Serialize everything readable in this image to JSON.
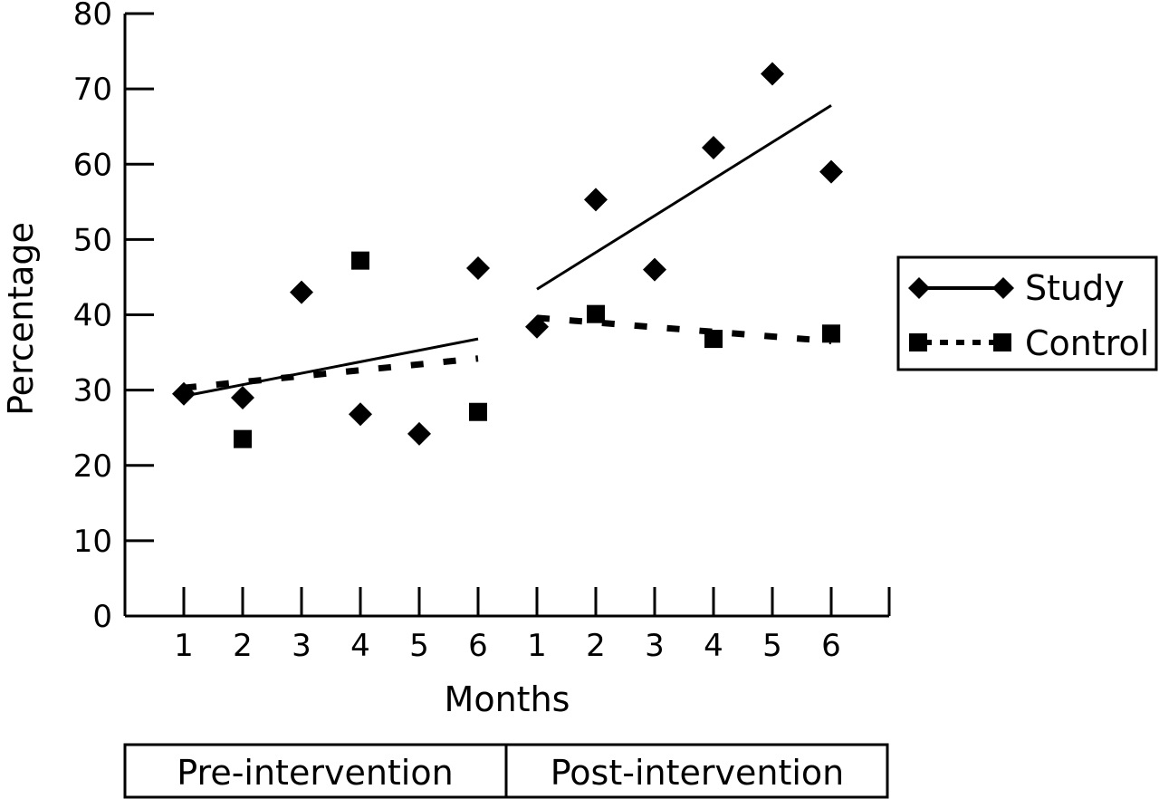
{
  "chart_data": {
    "type": "scatter",
    "title": "",
    "xlabel": "Months",
    "ylabel": "Percentage",
    "ylim": [
      0,
      80
    ],
    "yticks": [
      0,
      10,
      20,
      30,
      40,
      50,
      60,
      70,
      80
    ],
    "x_tick_labels": [
      "1",
      "2",
      "3",
      "4",
      "5",
      "6",
      "1",
      "2",
      "3",
      "4",
      "5",
      "6"
    ],
    "grid": false,
    "legend_position": "right",
    "phases": [
      {
        "label": "Pre-intervention",
        "months": [
          1,
          2,
          3,
          4,
          5,
          6
        ]
      },
      {
        "label": "Post-intervention",
        "months": [
          1,
          2,
          3,
          4,
          5,
          6
        ]
      }
    ],
    "series": [
      {
        "name": "Study",
        "marker": "diamond",
        "line_style": "solid",
        "color": "#000000",
        "values": [
          29.5,
          29,
          43,
          26.8,
          24.2,
          46.2,
          38.4,
          55.3,
          46,
          62.2,
          72,
          59
        ],
        "trend": [
          {
            "phase": "Pre-intervention",
            "start": 29.2,
            "end": 36.8
          },
          {
            "phase": "Post-intervention",
            "start": 43.4,
            "end": 67.8
          }
        ]
      },
      {
        "name": "Control",
        "marker": "square",
        "line_style": "dotted",
        "color": "#000000",
        "values": [
          null,
          23.5,
          null,
          47.2,
          null,
          27.1,
          null,
          40.1,
          null,
          36.8,
          null,
          37.5
        ],
        "trend": [
          {
            "phase": "Pre-intervention",
            "start": 30.3,
            "end": 34.2
          },
          {
            "phase": "Post-intervention",
            "start": 39.6,
            "end": 36.5
          }
        ]
      }
    ]
  }
}
